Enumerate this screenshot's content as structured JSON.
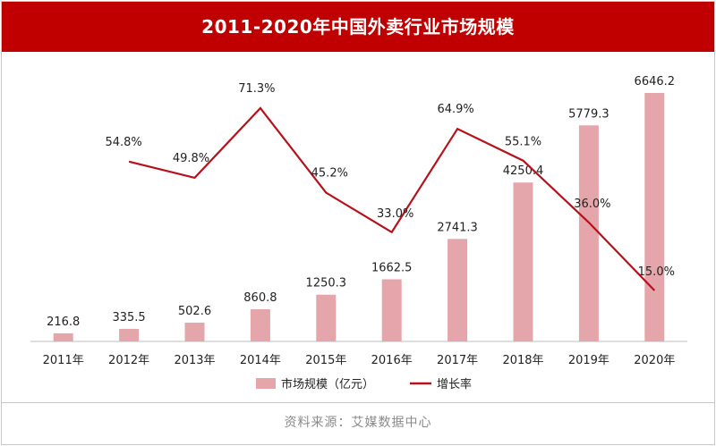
{
  "header": {
    "title": "2011-2020年中国外卖行业市场规模"
  },
  "footer": {
    "source": "资料来源：艾媒数据中心"
  },
  "colors": {
    "bar": "#e5a6ab",
    "line": "#b5121b",
    "title_bg": "#c00000"
  },
  "chart_data": {
    "type": "bar",
    "title": "2011-2020年中国外卖行业市场规模",
    "categories": [
      "2011年",
      "2012年",
      "2013年",
      "2014年",
      "2015年",
      "2016年",
      "2017年",
      "2018年",
      "2019年",
      "2020年"
    ],
    "series": [
      {
        "name": "市场规模（亿元）",
        "type": "bar",
        "values": [
          216.8,
          335.5,
          502.6,
          860.8,
          1250.3,
          1662.5,
          2741.3,
          4250.4,
          5779.3,
          6646.2
        ],
        "labels": [
          "216.8",
          "335.5",
          "502.6",
          "860.8",
          "1250.3",
          "1662.5",
          "2741.3",
          "4250.4",
          "5779.3",
          "6646.2"
        ]
      },
      {
        "name": "增长率",
        "type": "line",
        "values": [
          null,
          54.8,
          49.8,
          71.3,
          45.2,
          33.0,
          64.9,
          55.1,
          36.0,
          15.0
        ],
        "labels": [
          "",
          "54.8%",
          "49.8%",
          "71.3%",
          "45.2%",
          "33.0%",
          "64.9%",
          "55.1%",
          "36.0%",
          "15.0%"
        ]
      }
    ],
    "y_left_range": [
      0,
      7000
    ],
    "y_right_range": [
      0,
      100
    ],
    "grid": false,
    "legend": "bottom"
  }
}
